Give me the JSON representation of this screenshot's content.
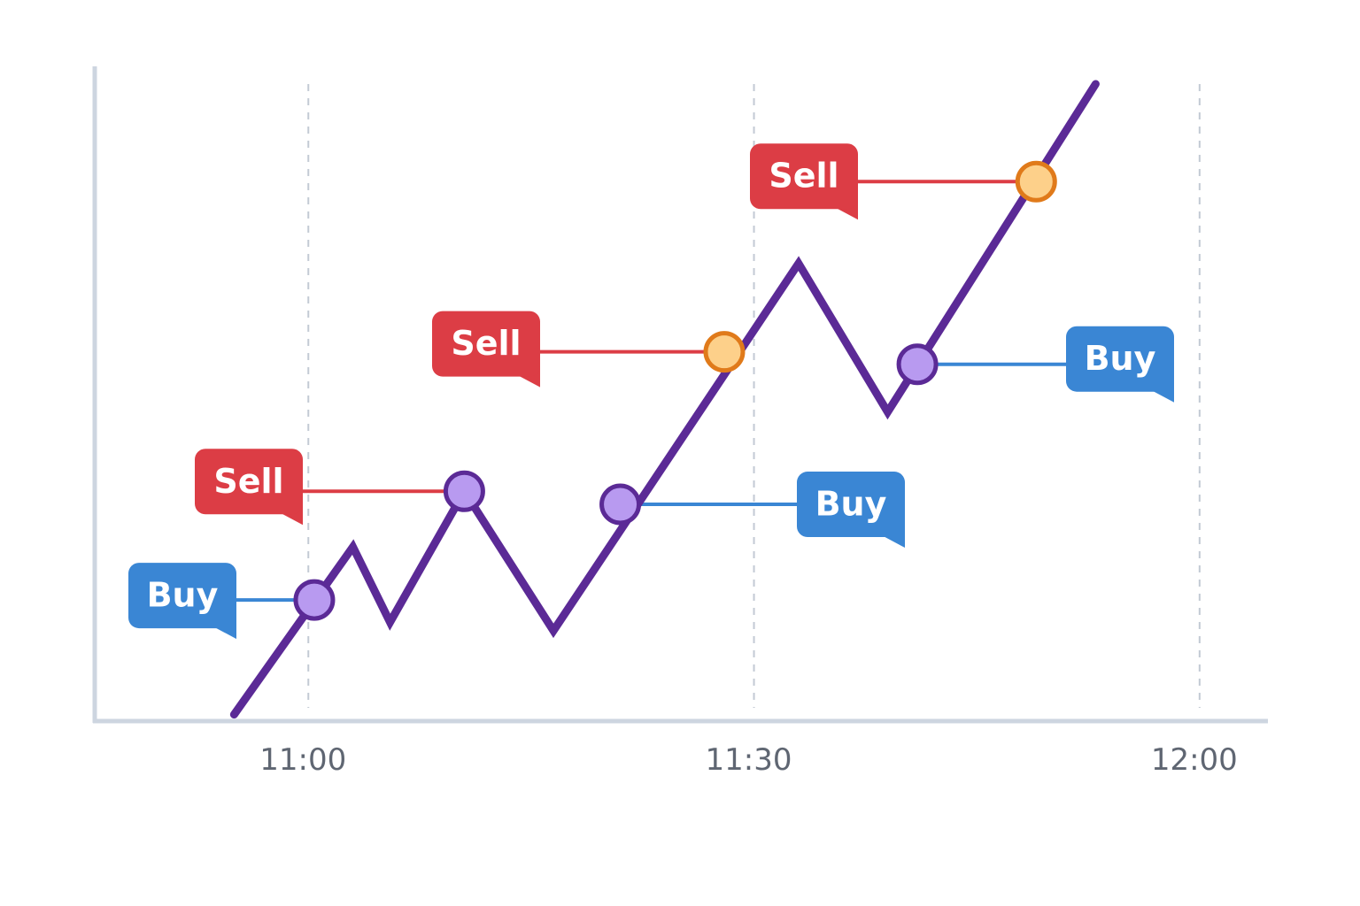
{
  "chart_data": {
    "type": "line",
    "x": [
      655,
      663,
      665.5,
      670.5,
      676.5,
      693,
      699,
      713
    ],
    "series": [
      {
        "color": "#5b2a96",
        "values": [
          1,
          26.6,
          15.1,
          35.1,
          13.8,
          69.9,
          47.2,
          97.3
        ]
      }
    ],
    "xlim": [
      645.5,
      724.6
    ],
    "ylim": [
      0,
      100
    ],
    "xticks": [
      {
        "value": 660,
        "label": "11:00"
      },
      {
        "value": 690,
        "label": "11:30"
      },
      {
        "value": 720,
        "label": "12:00"
      }
    ],
    "grid": true,
    "annotations": [
      {
        "text": "Buy",
        "x": 660.4,
        "y": 18.5,
        "color": "#3a86d4",
        "fill": "#b89af0",
        "stroke": "#5b2a96"
      },
      {
        "text": "Sell",
        "x": 670.5,
        "y": 35.1,
        "color": "#dc3d45",
        "fill": "#b89af0",
        "stroke": "#5b2a96"
      },
      {
        "text": "Buy",
        "x": 681,
        "y": 33.1,
        "color": "#3a86d4",
        "fill": "#b89af0",
        "stroke": "#5b2a96"
      },
      {
        "text": "Sell",
        "x": 688,
        "y": 56.4,
        "color": "#dc3d45",
        "fill": "#fdd08a",
        "stroke": "#e07a1a"
      },
      {
        "text": "Buy",
        "x": 701,
        "y": 54.5,
        "color": "#3a86d4",
        "fill": "#b89af0",
        "stroke": "#5b2a96"
      },
      {
        "text": "Sell",
        "x": 709,
        "y": 82.4,
        "color": "#dc3d45",
        "fill": "#fdd08a",
        "stroke": "#e07a1a"
      }
    ]
  }
}
